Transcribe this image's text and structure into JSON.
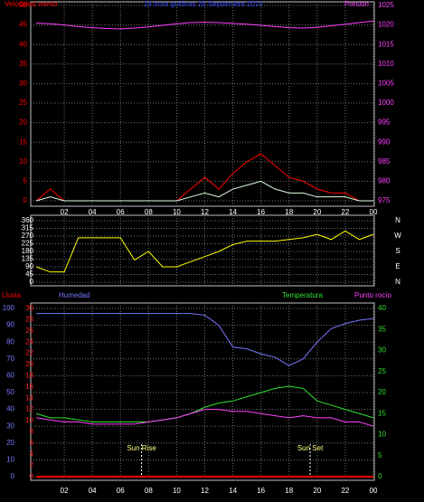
{
  "chart_data": [
    {
      "type": "line",
      "title": "24 hora gráficas  28 Septiembre 2014",
      "x": [
        0,
        1,
        2,
        3,
        4,
        5,
        6,
        7,
        8,
        9,
        10,
        11,
        12,
        13,
        14,
        15,
        16,
        17,
        18,
        19,
        20,
        21,
        22,
        23,
        24
      ],
      "xlim": [
        0,
        24
      ],
      "xticks": [
        {
          "value": 2,
          "label": "02"
        },
        {
          "value": 4,
          "label": "04"
        },
        {
          "value": 6,
          "label": "06"
        },
        {
          "value": 8,
          "label": "08"
        },
        {
          "value": 10,
          "label": "10"
        },
        12,
        14,
        16,
        18,
        20,
        22,
        {
          "value": 24,
          "label": "00"
        }
      ],
      "ylim": [
        0,
        50
      ],
      "yticks": [
        0,
        5,
        10,
        15,
        20,
        25,
        30,
        35,
        40,
        45,
        50
      ],
      "y2lim": [
        975,
        1025
      ],
      "y2ticks": [
        975,
        980,
        985,
        990,
        995,
        1000,
        1005,
        1010,
        1015,
        1020,
        1025
      ],
      "grid": true,
      "series": [
        {
          "name": "Velocidad viento",
          "color": "#ff0000",
          "values": [
            0,
            3,
            0,
            0,
            0,
            0,
            0,
            0,
            0,
            0,
            0,
            3,
            6,
            3,
            7,
            10,
            12,
            9,
            6,
            5,
            3,
            2,
            2,
            0,
            0
          ]
        },
        {
          "color": "#e0ffe0",
          "values": [
            0,
            1,
            0,
            0,
            0,
            0,
            0,
            0,
            0,
            0,
            0,
            1,
            2,
            1,
            3,
            4,
            5,
            3,
            2,
            2,
            1,
            1,
            1,
            0,
            0
          ]
        },
        {
          "name": "Presión",
          "color": "#ff40ff",
          "axis": "y2",
          "values": [
            1020.5,
            1020.3,
            1020,
            1019.6,
            1019.3,
            1019.1,
            1019,
            1019.2,
            1019.5,
            1019.9,
            1020.3,
            1020.6,
            1020.7,
            1020.6,
            1020.4,
            1020.2,
            1019.9,
            1019.6,
            1019.3,
            1019.2,
            1019.4,
            1019.8,
            1020.2,
            1020.6,
            1021
          ]
        }
      ]
    },
    {
      "type": "line",
      "x": [
        0,
        1,
        2,
        3,
        4,
        5,
        6,
        7,
        8,
        9,
        10,
        11,
        12,
        13,
        14,
        15,
        16,
        17,
        18,
        19,
        20,
        21,
        22,
        23,
        24
      ],
      "xlim": [
        0,
        24
      ],
      "xticks": [
        2,
        4,
        6,
        8,
        10,
        12,
        14,
        16,
        18,
        20,
        22,
        24
      ],
      "ylim": [
        0,
        360
      ],
      "yticks": [
        0,
        45,
        90,
        135,
        180,
        225,
        270,
        315,
        360
      ],
      "y2lim": [
        0,
        360
      ],
      "y2ticks": [
        {
          "value": 0,
          "label": "N"
        },
        {
          "value": 90,
          "label": "E"
        },
        {
          "value": 180,
          "label": "S"
        },
        {
          "value": 270,
          "label": "W"
        },
        {
          "value": 360,
          "label": "N"
        }
      ],
      "grid": true,
      "series": [
        {
          "color": "#ffff00",
          "values": [
            90,
            60,
            60,
            260,
            260,
            260,
            260,
            130,
            180,
            90,
            90,
            120,
            150,
            180,
            220,
            240,
            240,
            240,
            250,
            260,
            280,
            250,
            300,
            250,
            280
          ]
        }
      ]
    },
    {
      "type": "line",
      "x": [
        0,
        1,
        2,
        3,
        4,
        5,
        6,
        7,
        8,
        9,
        10,
        11,
        12,
        13,
        14,
        15,
        16,
        17,
        18,
        19,
        20,
        21,
        22,
        23,
        24
      ],
      "xlim": [
        0,
        24
      ],
      "xticks": [
        {
          "value": 2,
          "label": "02"
        },
        {
          "value": 4,
          "label": "04"
        },
        {
          "value": 6,
          "label": "06"
        },
        {
          "value": 8,
          "label": "08"
        },
        {
          "value": 10,
          "label": "10"
        },
        12,
        14,
        16,
        18,
        20,
        22,
        {
          "value": 24,
          "label": "00"
        }
      ],
      "ylim": [
        0,
        100
      ],
      "yticks": [
        0,
        10,
        20,
        30,
        40,
        50,
        60,
        70,
        80,
        90,
        100
      ],
      "y3lim": [
        0,
        30
      ],
      "y3ticks": [
        0,
        2,
        4,
        6,
        8,
        10,
        12,
        14,
        16,
        18,
        20,
        22,
        24,
        26,
        28,
        30
      ],
      "y2lim": [
        0,
        40
      ],
      "y2ticks": [
        0,
        5,
        10,
        15,
        20,
        25,
        30,
        35,
        40
      ],
      "grid": true,
      "annotations": [
        {
          "text": "Sun Rise",
          "x": 7.5
        },
        {
          "text": "Sun Set",
          "x": 19.5
        }
      ],
      "series": [
        {
          "name": "Lluvia",
          "color": "#ff0000",
          "axis": "y3",
          "values": [
            0,
            0,
            0,
            0,
            0,
            0,
            0,
            0,
            0,
            0,
            0,
            0,
            0,
            0,
            0,
            0,
            0,
            0,
            0,
            0,
            0,
            0,
            0,
            0,
            0
          ]
        },
        {
          "name": "Humedad",
          "color": "#7878ff",
          "values": [
            97,
            97,
            97,
            97,
            97,
            97,
            97,
            97,
            97,
            97,
            97,
            97,
            96,
            90,
            77,
            76,
            73,
            71,
            66,
            70,
            80,
            88,
            91,
            93,
            94
          ]
        },
        {
          "name": "Temperatura",
          "color": "#30e030",
          "axis": "y2",
          "values": [
            15,
            14,
            14,
            13.5,
            13,
            13,
            13,
            13,
            13,
            13.5,
            14,
            15,
            16.5,
            17.5,
            18,
            19,
            20,
            21,
            21.5,
            21,
            18,
            17,
            16,
            15,
            14
          ]
        },
        {
          "name": "Punto rocío",
          "color": "#ff40ff",
          "axis": "y2",
          "values": [
            14,
            13.5,
            13,
            13,
            12.5,
            12.5,
            12.5,
            12.5,
            13,
            13.5,
            14,
            15,
            16,
            16,
            15.5,
            15.5,
            15,
            14.5,
            14,
            14.5,
            14,
            14,
            13,
            13,
            12
          ]
        }
      ]
    }
  ]
}
